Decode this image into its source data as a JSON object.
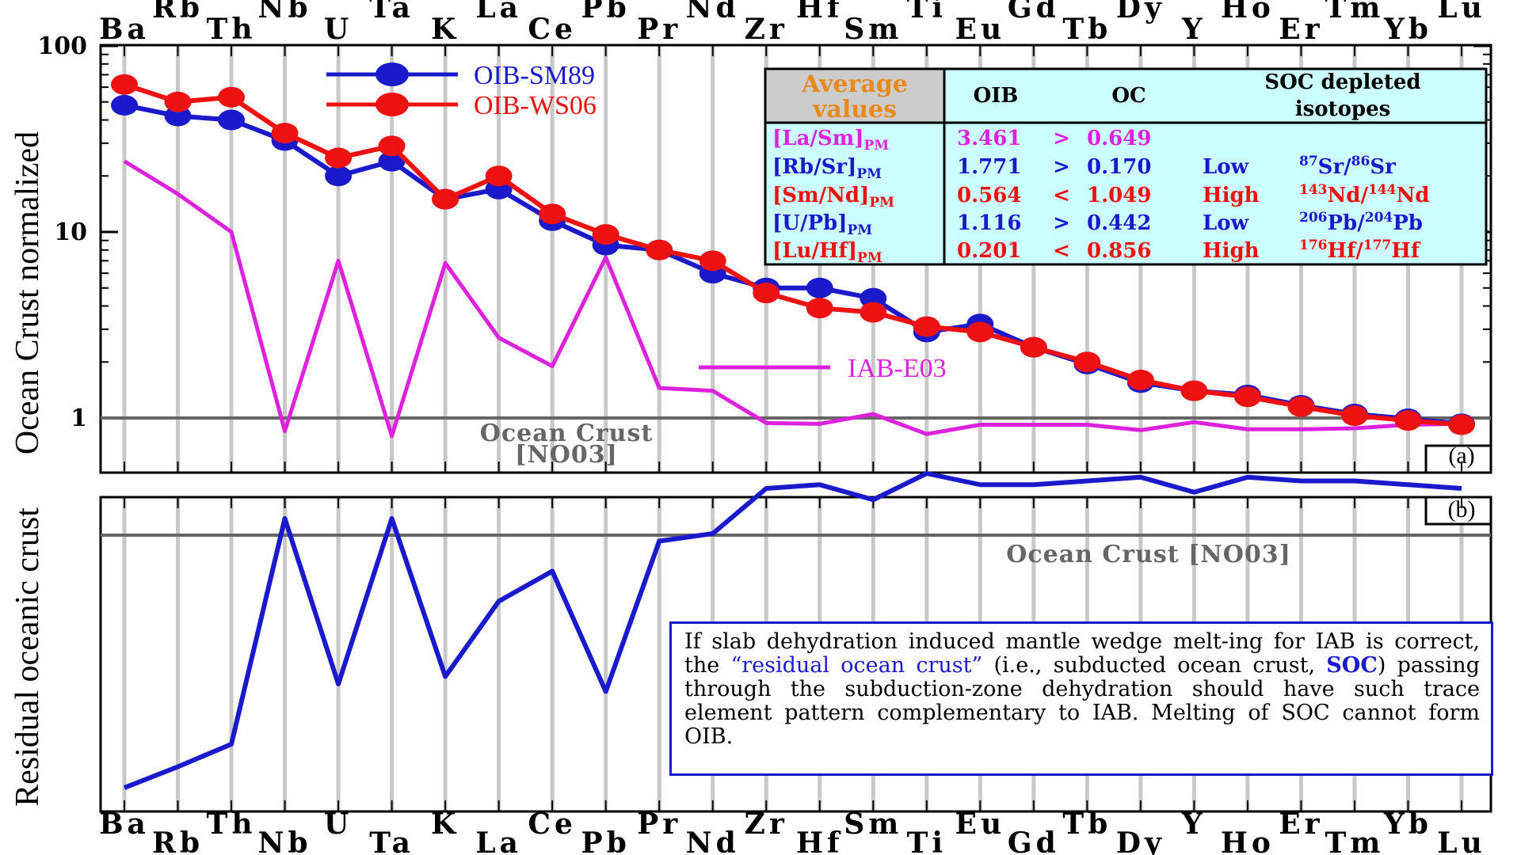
{
  "chart_data": [
    {
      "panel": "a",
      "type": "line",
      "scale": "log",
      "ylabel": "Ocean Crust normalized",
      "ylim": [
        0.5,
        100
      ],
      "yticks": [
        "100",
        "10",
        "1"
      ],
      "ytick_values": [
        100,
        10,
        1
      ],
      "elements": [
        "Ba",
        "Rb",
        "Th",
        "Nb",
        "U",
        "Ta",
        "K",
        "La",
        "Ce",
        "Pb",
        "Pr",
        "Nd",
        "Zr",
        "Hf",
        "Sm",
        "Ti",
        "Eu",
        "Gd",
        "Tb",
        "Dy",
        "Y",
        "Ho",
        "Er",
        "Tm",
        "Yb",
        "Lu"
      ],
      "series": [
        {
          "name": "OIB-SM89",
          "color": "#1a1acc",
          "markers": true,
          "values": [
            48,
            42,
            40,
            31,
            20,
            24,
            15,
            17,
            11.5,
            8.5,
            8,
            6,
            5,
            5,
            4.4,
            2.9,
            3.2,
            2.4,
            1.95,
            1.55,
            1.4,
            1.33,
            1.17,
            1.05,
            0.99,
            0.93
          ]
        },
        {
          "name": "OIB-WS06",
          "color": "#ee1111",
          "markers": true,
          "values": [
            62,
            50,
            53,
            34,
            25,
            29,
            15,
            20,
            12.5,
            9.7,
            8,
            7,
            4.7,
            3.9,
            3.7,
            3.1,
            2.9,
            2.4,
            2,
            1.6,
            1.4,
            1.3,
            1.15,
            1.03,
            0.97,
            0.92
          ]
        },
        {
          "name": "IAB-E03",
          "color": "#dd22dd",
          "markers": false,
          "values": [
            24,
            16,
            10,
            0.85,
            7,
            0.8,
            6.8,
            2.7,
            1.9,
            7.3,
            1.45,
            1.4,
            0.94,
            0.93,
            1.05,
            0.82,
            0.92,
            0.92,
            0.92,
            0.86,
            0.95,
            0.87,
            0.87,
            0.88,
            0.92,
            0.93
          ]
        }
      ],
      "reference_line": {
        "value": 1,
        "label_line1": "Ocean Crust",
        "label_line2": "[NO03]",
        "color": "#666666"
      },
      "panel_label": "(a)"
    },
    {
      "panel": "b",
      "type": "line",
      "ylabel": "Residual oceanic crust",
      "series": [
        {
          "name": "",
          "color": "#1a1acc",
          "values": [
            0.02,
            0.3,
            0.6,
            3.6,
            1.4,
            3.6,
            1.5,
            2.5,
            2.9,
            1.3,
            3.3,
            3.4,
            4.0,
            4.05,
            3.85,
            4.2,
            4.05,
            4.05,
            4.1,
            4.15,
            3.95,
            4.15,
            4.1,
            4.1,
            4.05,
            4.0
          ]
        }
      ],
      "reference_line": {
        "value": 3.9,
        "label": "Ocean Crust [NO03]",
        "color": "#666666"
      },
      "panel_label": "(b)"
    }
  ],
  "legend": {
    "oib_sm89": "OIB-SM89",
    "oib_ws06": "OIB-WS06",
    "iab_e03": "IAB-E03"
  },
  "table": {
    "header_left_line1": "Average",
    "header_left_line2": "values",
    "col_oib": "OIB",
    "col_oc": "OC",
    "col_soc_line1": "SOC depleted",
    "col_soc_line2": "isotopes",
    "rows": [
      {
        "ratio": "[La/Sm]",
        "sub": "PM",
        "oib": "3.461",
        "op": ">",
        "oc": "0.649",
        "soc": "",
        "iso": "",
        "color": "#dd22dd"
      },
      {
        "ratio": "[Rb/Sr]",
        "sub": "PM",
        "oib": "1.771",
        "op": ">",
        "oc": "0.170",
        "soc": "Low",
        "iso": "87Sr/86Sr",
        "color": "#1a1acc"
      },
      {
        "ratio": "[Sm/Nd]",
        "sub": "PM",
        "oib": "0.564",
        "op": "<",
        "oc": "1.049",
        "soc": "High",
        "iso": "143Nd/144Nd",
        "color": "#ee1111"
      },
      {
        "ratio": "[U/Pb]",
        "sub": "PM",
        "oib": "1.116",
        "op": ">",
        "oc": "0.442",
        "soc": "Low",
        "iso": "206Pb/204Pb",
        "color": "#1a1acc"
      },
      {
        "ratio": "[Lu/Hf]",
        "sub": "PM",
        "oib": "0.201",
        "op": "<",
        "oc": "0.856",
        "soc": "High",
        "iso": "176Hf/177Hf",
        "color": "#ee1111"
      }
    ],
    "header_bg_left": "#cccccc",
    "table_bg": "#ccffff"
  },
  "note": {
    "part1": "If slab dehydration induced mantle wedge melt-ing for IAB is correct, the ",
    "quote": "“residual ocean crust”",
    "part2": " (i.e., subducted ocean crust, ",
    "soc": "SOC",
    "part3": ") passing through the subduction-zone dehydration should have such trace element pattern complementary to IAB. Melting of SOC cannot form OIB."
  }
}
